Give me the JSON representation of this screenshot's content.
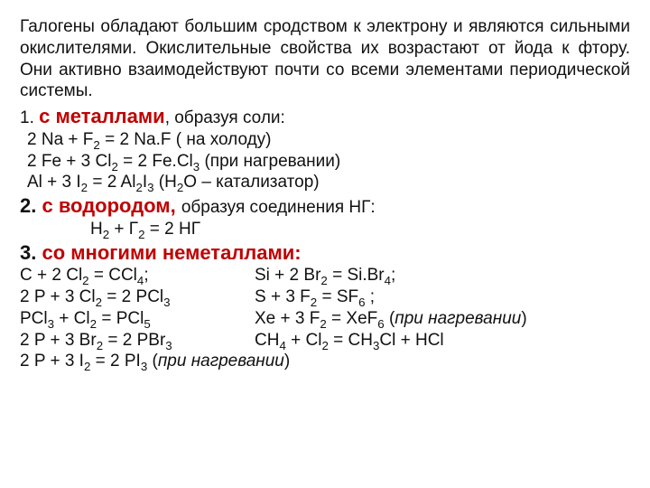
{
  "intro": "Галогены обладают большим сродством к электрону и являются сильными окислителями. Окислительные свойства их возрастают от йода к фтору. Они активно взаимодействуют почти со всеми элементами периодической системы.",
  "s1": {
    "num": "1. ",
    "head": "с металлами",
    "tail": ", образуя соли:"
  },
  "e1": "2 Na + F",
  "e1b": " = 2 Na.F ( на холоду)",
  "e2": "2 Fe + 3 Cl",
  "e2b": " = 2 Fe.Cl",
  "e2c": " (при нагревании)",
  "e3a": "Al + 3 I",
  "e3b": " = 2 Al",
  "e3c": "I",
  "e3d": " (H",
  "e3e": "O – катализатор)",
  "s2": {
    "num": "2.  ",
    "head": "с водородом, ",
    "tail": "образуя соединения НГ:"
  },
  "e4a": "H",
  "e4b": " + Г",
  "e4c": " = 2 НГ",
  "s3": {
    "num": "3. ",
    "head": "со многими неметаллами:"
  },
  "r1l_a": "С + 2 Cl",
  "r1l_b": " = CCl",
  "r1l_c": ";",
  "r1r_a": "Si + 2 Br",
  "r1r_b": " = Si.Br",
  "r1r_c": ";",
  "r2l_a": "2 P + 3 Cl",
  "r2l_b": " = 2 PCl",
  "r2r_a": " S + 3 F",
  "r2r_b": " = SF",
  "r2r_c": " ;",
  "r3l_a": "PCl",
  "r3l_b": " + Cl",
  "r3l_c": " = PCl",
  "r3r_a": " Xe + 3 F",
  "r3r_b": " = XeF",
  "r3r_c": " (",
  "r3r_d": "при нагревании",
  "r3r_e": ")",
  "r4l_a": "2 P + 3 Br",
  "r4l_b": " = 2 PBr",
  "r4r_a": " CH",
  "r4r_b": " + Cl",
  "r4r_c": " = CH",
  "r4r_d": "Cl + HCl",
  "r5_a": "2 P + 3 I",
  "r5_b": " = 2 PI",
  "r5_c": " (",
  "r5_d": "при нагревании",
  "r5_e": ")",
  "sub2": "2",
  "sub3": "3",
  "sub4": "4",
  "sub5": "5",
  "sub6": "6"
}
